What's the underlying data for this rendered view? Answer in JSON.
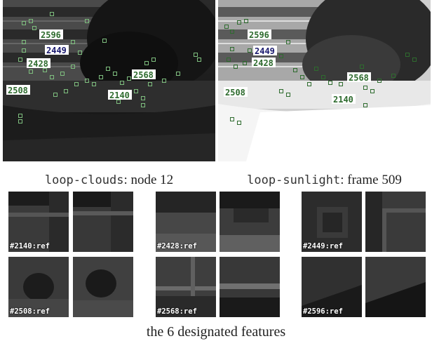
{
  "captions": {
    "left": {
      "mono": "loop-clouds",
      "rest": ": node 12"
    },
    "right": {
      "mono": "loop-sunlight",
      "rest": ": frame 509"
    }
  },
  "frame_labels": [
    "2596",
    "2449",
    "2428",
    "2568",
    "2508",
    "2140"
  ],
  "patches": [
    "#2140:ref",
    "#2428:ref",
    "#2449:ref",
    "#2508:ref",
    "#2568:ref",
    "#2596:ref"
  ],
  "footer": "the 6 designated features",
  "colors": {
    "green": "#2e6b2e",
    "navy": "#1a1a6e",
    "marker_red": "#b33"
  }
}
